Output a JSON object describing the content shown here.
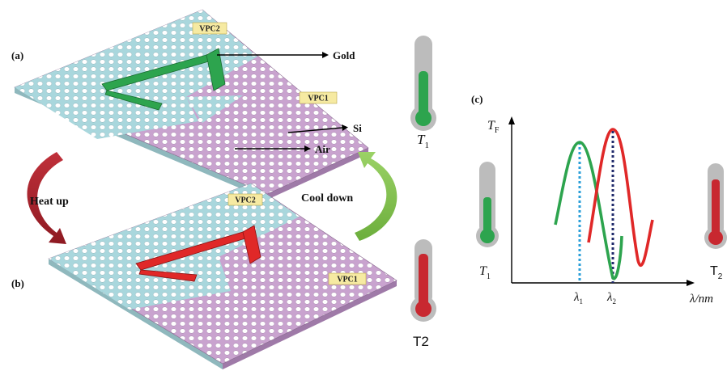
{
  "panels": {
    "a": {
      "label": "(a)",
      "vpc_top": "VPC2",
      "vpc_bottom": "VPC1"
    },
    "b": {
      "label": "(b)",
      "vpc_top": "VPC2",
      "vpc_bottom": "VPC1"
    },
    "c": {
      "label": "(c)"
    }
  },
  "callouts": {
    "gold": "Gold",
    "si": "Si",
    "air": "Air"
  },
  "arrows": {
    "heat": "Heat  up",
    "cool": "Cool down"
  },
  "thermometers": {
    "t1": "T",
    "t1_sub": "1",
    "t2": "T2"
  },
  "plot": {
    "ylabel": "T",
    "ylabel_sub": "F",
    "xlabel": "λ/nm",
    "lambda1": "λ",
    "lambda1_sub": "1",
    "lambda2": "λ",
    "lambda2_sub": "2",
    "t1": "T",
    "t1_sub": "1",
    "t2": "T",
    "t2_sub": "2"
  },
  "colors": {
    "cyan_region": "#a9d7dd",
    "purple_region": "#c9a3cf",
    "gold_cold": "#2da44e",
    "gold_hot": "#e02828",
    "heat_arrow": "#b3202a",
    "cool_arrow": "#7fc24a",
    "dotted1": "#2b9fd8",
    "dotted2": "#1f2a6b"
  }
}
